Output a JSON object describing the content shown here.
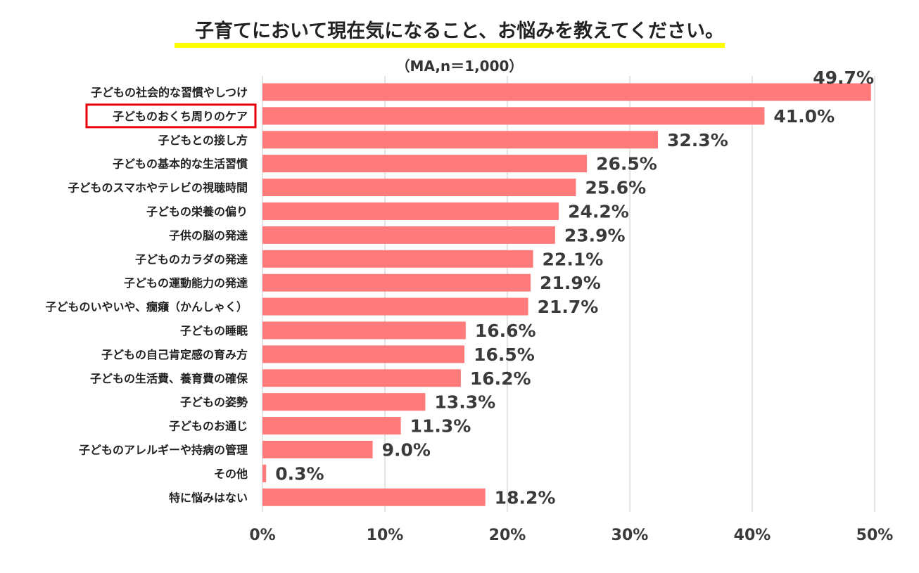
{
  "title": "子育てにおいて現在気になること、お悩みを教えてください。",
  "subtitle": "（MA,n＝1,000）",
  "colors": {
    "bar": "#ff7b7b",
    "highlight": "#e8000a",
    "grid": "#d4d4d4",
    "title_underline": "#ffff00"
  },
  "chart_data": {
    "type": "bar",
    "orientation": "horizontal",
    "categories": [
      "子どもの社会的な習慣やしつけ",
      "子どものおくち周りのケア",
      "子どもとの接し方",
      "子どもの基本的な生活習慣",
      "子どものスマホやテレビの視聴時間",
      "子どもの栄養の偏り",
      "子供の脳の発達",
      "子どものカラダの発達",
      "子どもの運動能力の発達",
      "子どものいやいや、癇癪（かんしゃく）",
      "子どもの睡眠",
      "子どもの自己肯定感の育み方",
      "子どもの生活費、養育費の確保",
      "子どもの姿勢",
      "子どものお通じ",
      "子どものアレルギーや持病の管理",
      "その他",
      "特に悩みはない"
    ],
    "values": [
      49.7,
      41.0,
      32.3,
      26.5,
      25.6,
      24.2,
      23.9,
      22.1,
      21.9,
      21.7,
      16.6,
      16.5,
      16.2,
      13.3,
      11.3,
      9.0,
      0.3,
      18.2
    ],
    "value_labels": [
      "49.7%",
      "41.0%",
      "32.3%",
      "26.5%",
      "25.6%",
      "24.2%",
      "23.9%",
      "22.1%",
      "21.9%",
      "21.7%",
      "16.6%",
      "16.5%",
      "16.2%",
      "13.3%",
      "11.3%",
      "9.0%",
      "0.3%",
      "18.2%"
    ],
    "highlighted_category": "子どものおくち周りのケア",
    "xlim": [
      0,
      50
    ],
    "xticks": [
      "0%",
      "10%",
      "20%",
      "30%",
      "40%",
      "50%"
    ],
    "xtick_values": [
      0,
      10,
      20,
      30,
      40,
      50
    ],
    "grid": true
  }
}
